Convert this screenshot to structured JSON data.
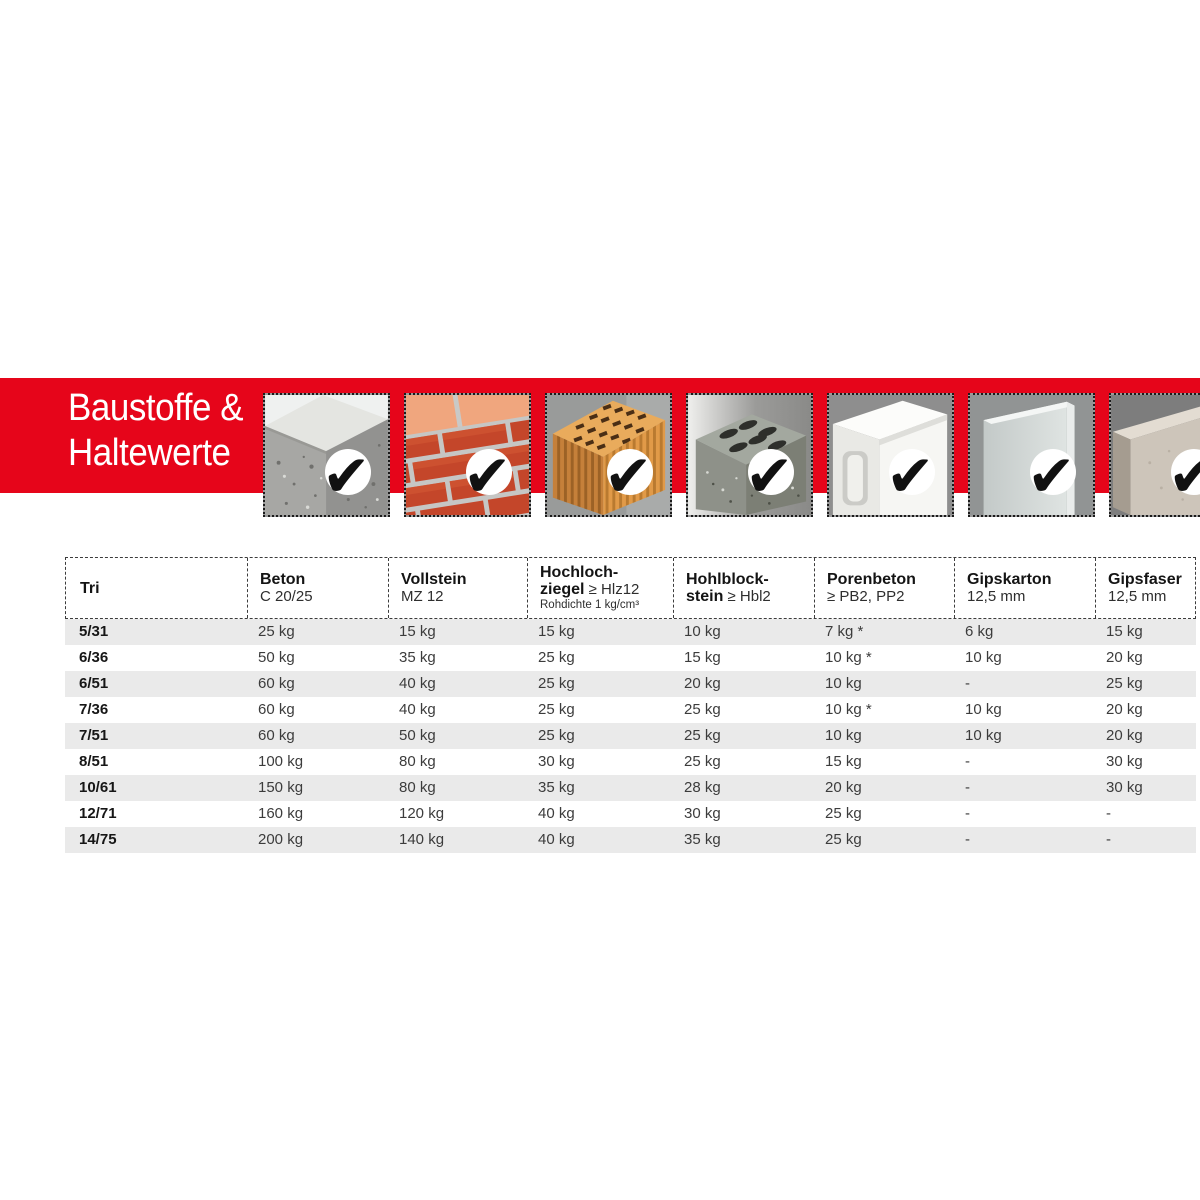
{
  "banner": {
    "bg_color": "#e6051a",
    "title_line1": "Baustoffe &",
    "title_line2": "Haltewerte",
    "checkmark": "✔",
    "tiles": [
      {
        "icon": "concrete-block-photo"
      },
      {
        "icon": "brick-wall-photo"
      },
      {
        "icon": "perforated-clay-brick-photo"
      },
      {
        "icon": "hollow-concrete-block-photo"
      },
      {
        "icon": "aerated-concrete-block-photo"
      },
      {
        "icon": "plasterboard-panel-photo"
      },
      {
        "icon": "gypsum-fibre-panel-photo"
      }
    ]
  },
  "table": {
    "stripe_color": "#eaeaea",
    "columns": [
      {
        "line1": "Tri"
      },
      {
        "line1": "Beton",
        "line2_reg": "C 20/25"
      },
      {
        "line1": "Vollstein",
        "line2_reg": "MZ 12"
      },
      {
        "line1": "Hochloch-",
        "line2_bold": "ziegel",
        "line2_reg": " ≥ Hlz12",
        "line3": "Rohdichte 1 kg/cm³"
      },
      {
        "line1": "Hohlblock-",
        "line2_bold": "stein",
        "line2_reg": " ≥ Hbl2"
      },
      {
        "line1": "Porenbeton",
        "line2_reg": "≥ PB2, PP2"
      },
      {
        "line1": "Gipskarton",
        "line2_reg": "12,5 mm"
      },
      {
        "line1": "Gipsfaser",
        "line2_reg": "12,5 mm"
      }
    ],
    "rows": [
      {
        "tri": "5/31",
        "values": [
          "25 kg",
          "15 kg",
          "15 kg",
          "10 kg",
          "7 kg *",
          "6 kg",
          "15 kg"
        ]
      },
      {
        "tri": "6/36",
        "values": [
          "50 kg",
          "35 kg",
          "25 kg",
          "15 kg",
          "10 kg *",
          "10 kg",
          "20 kg"
        ]
      },
      {
        "tri": "6/51",
        "values": [
          "60 kg",
          "40 kg",
          "25 kg",
          "20 kg",
          "10 kg",
          "-",
          "25 kg"
        ]
      },
      {
        "tri": "7/36",
        "values": [
          "60 kg",
          "40 kg",
          "25 kg",
          "25 kg",
          "10 kg *",
          "10 kg",
          "20 kg"
        ]
      },
      {
        "tri": "7/51",
        "values": [
          "60 kg",
          "50 kg",
          "25 kg",
          "25 kg",
          "10 kg",
          "10 kg",
          "20 kg"
        ]
      },
      {
        "tri": "8/51",
        "values": [
          "100 kg",
          "80 kg",
          "30 kg",
          "25 kg",
          "15 kg",
          "-",
          "30 kg"
        ]
      },
      {
        "tri": "10/61",
        "values": [
          "150 kg",
          "80 kg",
          "35 kg",
          "28 kg",
          "20 kg",
          "-",
          "30 kg"
        ]
      },
      {
        "tri": "12/71",
        "values": [
          "160 kg",
          "120 kg",
          "40 kg",
          "30 kg",
          "25 kg",
          "-",
          "-"
        ]
      },
      {
        "tri": "14/75",
        "values": [
          "200 kg",
          "140 kg",
          "40 kg",
          "35 kg",
          "25 kg",
          "-",
          "-"
        ]
      }
    ]
  }
}
